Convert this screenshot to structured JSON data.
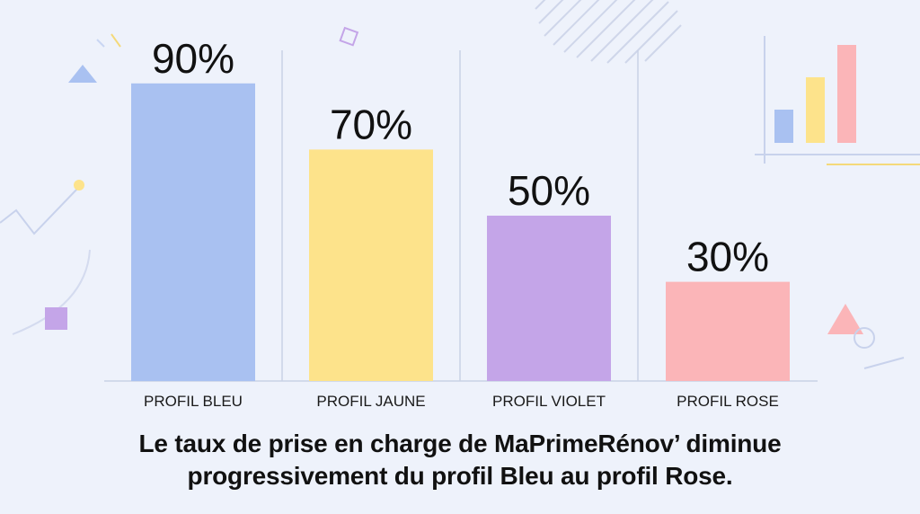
{
  "chart_data": {
    "type": "bar",
    "categories": [
      "PROFIL BLEU",
      "PROFIL JAUNE",
      "PROFIL VIOLET",
      "PROFIL ROSE"
    ],
    "values": [
      90,
      70,
      50,
      30
    ],
    "value_labels": [
      "90%",
      "70%",
      "50%",
      "30%"
    ],
    "colors": [
      "#a9c1f1",
      "#fde38b",
      "#c4a5e8",
      "#fbb5b8"
    ],
    "unit": "%",
    "ylim": [
      0,
      100
    ],
    "grid": false,
    "legend": "none"
  },
  "caption": {
    "line1": "Le taux de prise en charge de MaPrimeRénov’ diminue",
    "line2": "progressivement du profil Bleu au profil Rose."
  },
  "decor": {
    "mini_chart_colors": [
      "#a9c1f1",
      "#fde38b",
      "#fbb5b8"
    ]
  }
}
